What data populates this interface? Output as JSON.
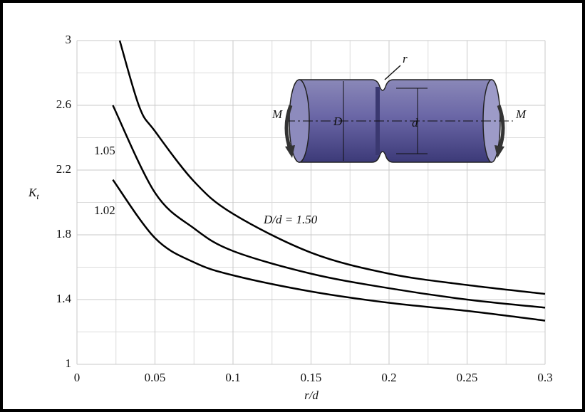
{
  "chart_data": {
    "type": "line",
    "xlabel": "r/d",
    "ylabel": "K",
    "ylabel_subscript": "t",
    "xlim": [
      0,
      0.3
    ],
    "ylim": [
      1.0,
      3.0
    ],
    "xticks": [
      0,
      0.05,
      0.1,
      0.15,
      0.2,
      0.25,
      0.3
    ],
    "yticks": [
      1.0,
      1.4,
      1.8,
      2.2,
      2.6,
      3.0
    ],
    "x_minor_grid": [
      0.025,
      0.075,
      0.125,
      0.175,
      0.225,
      0.275
    ],
    "y_minor_grid": [
      1.2,
      1.6,
      2.0,
      2.4,
      2.8
    ],
    "grid": true,
    "color": "#000000",
    "series": [
      {
        "name": "D/d = 1.50",
        "x": [
          0.0274,
          0.04,
          0.05,
          0.075,
          0.1,
          0.15,
          0.2,
          0.25,
          0.3
        ],
        "values": [
          3.0,
          2.59,
          2.44,
          2.13,
          1.93,
          1.69,
          1.56,
          1.49,
          1.435
        ]
      },
      {
        "name": "1.05",
        "x": [
          0.023,
          0.05,
          0.075,
          0.1,
          0.15,
          0.2,
          0.25,
          0.3
        ],
        "values": [
          2.6,
          2.06,
          1.84,
          1.7,
          1.56,
          1.47,
          1.4,
          1.35
        ]
      },
      {
        "name": "1.02",
        "x": [
          0.023,
          0.05,
          0.075,
          0.1,
          0.15,
          0.2,
          0.25,
          0.3
        ],
        "values": [
          2.14,
          1.78,
          1.63,
          1.55,
          1.45,
          1.38,
          1.33,
          1.27
        ]
      }
    ]
  },
  "diagram": {
    "moment_left": "M",
    "moment_right": "M",
    "large_diameter": "D",
    "small_diameter": "d",
    "radius": "r"
  }
}
